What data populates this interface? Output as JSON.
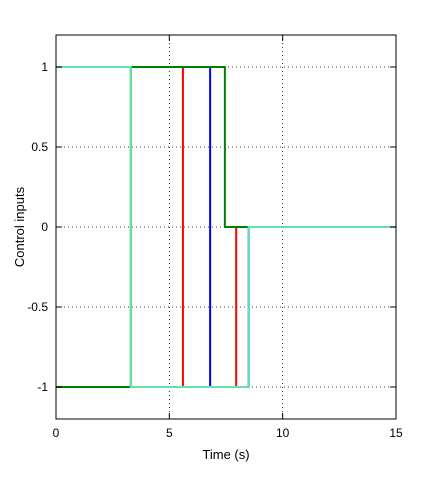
{
  "chart_data": {
    "type": "line",
    "title": "",
    "xlabel": "Time (s)",
    "ylabel": "Control inputs",
    "xlim": [
      0,
      15
    ],
    "ylim": [
      -1.2,
      1.2
    ],
    "x_ticks": [
      0,
      5,
      10,
      15
    ],
    "y_ticks": [
      -1,
      -0.5,
      0,
      0.5,
      1
    ],
    "x_tick_labels": [
      "0",
      "5",
      "10",
      "15"
    ],
    "y_tick_labels": [
      "-1",
      "-0.5",
      "0",
      "0.5",
      "1"
    ],
    "grid": true,
    "legend": "none",
    "step_lines": true,
    "series": [
      {
        "color": "#ff0000",
        "x": [
          0,
          5.6,
          5.6,
          7.95,
          7.95,
          15
        ],
        "y": [
          1,
          1,
          -1,
          -1,
          0,
          0
        ]
      },
      {
        "color": "#0000ff",
        "x": [
          0,
          6.8,
          6.8,
          8.5,
          8.5,
          15
        ],
        "y": [
          1,
          1,
          -1,
          -1,
          0,
          0
        ]
      },
      {
        "color": "#008000",
        "x": [
          0,
          3.3,
          3.3,
          7.45,
          7.45,
          8.5,
          8.5,
          15
        ],
        "y": [
          -1,
          -1,
          1,
          1,
          0,
          0,
          0,
          0
        ]
      },
      {
        "color": "#66e0b0",
        "x": [
          0,
          3.3,
          3.3,
          8.5,
          8.5,
          15
        ],
        "y": [
          1,
          1,
          -1,
          -1,
          0,
          0
        ]
      }
    ]
  }
}
